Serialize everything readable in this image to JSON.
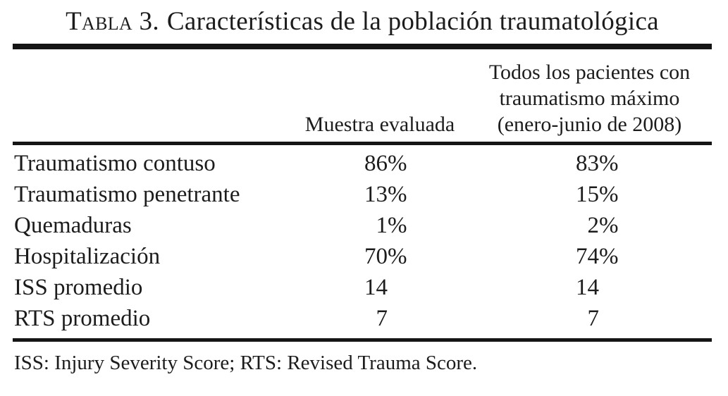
{
  "title": {
    "label": "Tabla 3.",
    "text": "Características de la población traumatológica"
  },
  "header": {
    "col2": "Muestra evaluada",
    "col3_lines": [
      "Todos los pacientes con",
      "traumatismo máximo",
      "(enero-junio de 2008)"
    ]
  },
  "table": {
    "rows": [
      {
        "label": "Traumatismo contuso",
        "sample_num": "86",
        "sample_suffix": "%",
        "all_num": "83",
        "all_suffix": "%"
      },
      {
        "label": "Traumatismo penetrante",
        "sample_num": "13",
        "sample_suffix": "%",
        "all_num": "15",
        "all_suffix": "%"
      },
      {
        "label": "Quemaduras",
        "sample_num": "1",
        "sample_suffix": "%",
        "all_num": "2",
        "all_suffix": "%"
      },
      {
        "label": "Hospitalización",
        "sample_num": "70",
        "sample_suffix": "%",
        "all_num": "74",
        "all_suffix": "%"
      },
      {
        "label": "ISS promedio",
        "sample_num": "14",
        "sample_suffix": "",
        "all_num": "14",
        "all_suffix": ""
      },
      {
        "label": "RTS promedio",
        "sample_num": "7",
        "sample_suffix": "",
        "all_num": "7",
        "all_suffix": ""
      }
    ]
  },
  "footnote": "ISS: Injury Severity Score; RTS: Revised Trauma Score.",
  "colors": {
    "text": "#1c1c1c",
    "rule": "#151515",
    "background": "#ffffff"
  }
}
